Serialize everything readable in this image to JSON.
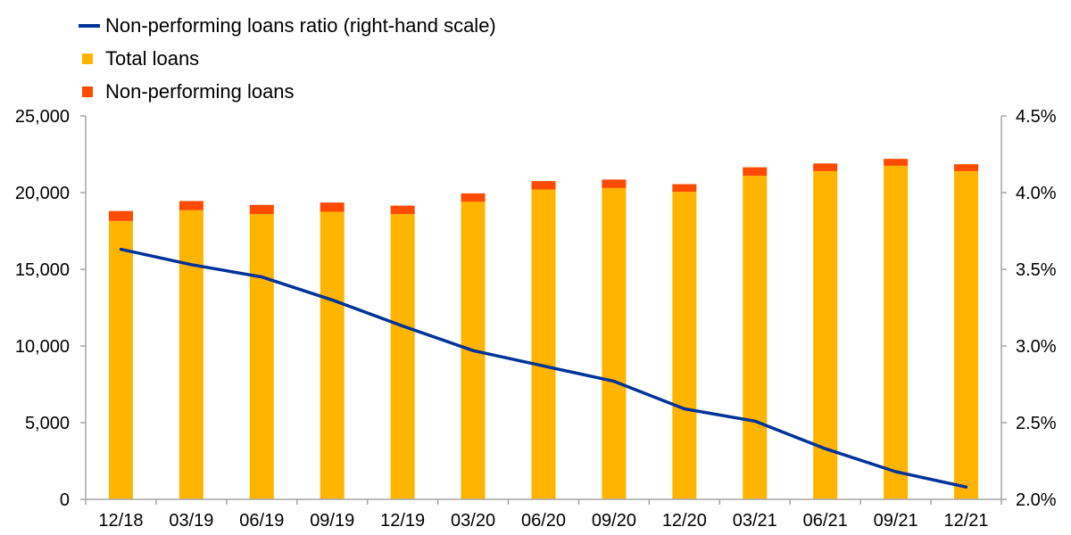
{
  "chart_data": {
    "type": "bar",
    "categories": [
      "12/18",
      "03/19",
      "06/19",
      "09/19",
      "12/19",
      "03/20",
      "06/20",
      "09/20",
      "12/20",
      "03/21",
      "06/21",
      "09/21",
      "12/21"
    ],
    "series": [
      {
        "name": "Total loans",
        "kind": "stacked-bar",
        "axis": "left",
        "color": "#FFB400",
        "values": [
          18150,
          18850,
          18600,
          18750,
          18600,
          19400,
          20200,
          20300,
          20050,
          21100,
          21400,
          21750,
          21400
        ]
      },
      {
        "name": "Non-performing loans",
        "kind": "stacked-bar",
        "axis": "left",
        "color": "#FF4B00",
        "values": [
          650,
          600,
          600,
          600,
          550,
          550,
          550,
          550,
          500,
          550,
          500,
          450,
          450
        ]
      },
      {
        "name": "Non-performing loans ratio (right-hand scale)",
        "kind": "line",
        "axis": "right",
        "color": "#003299",
        "values": [
          3.63,
          3.53,
          3.45,
          3.3,
          3.13,
          2.97,
          2.87,
          2.77,
          2.59,
          2.51,
          2.33,
          2.18,
          2.08
        ]
      }
    ],
    "legend_order": [
      "Non-performing loans ratio (right-hand scale)",
      "Total loans",
      "Non-performing loans"
    ],
    "legend_position": "top-left",
    "ylim": [
      0,
      25000
    ],
    "yticks": [
      "0",
      "5,000",
      "10,000",
      "15,000",
      "20,000",
      "25,000"
    ],
    "ylim_right": [
      2.0,
      4.5
    ],
    "yticks_right": [
      "2.0%",
      "2.5%",
      "3.0%",
      "3.5%",
      "4.0%",
      "4.5%"
    ],
    "grid": false,
    "axis_color": "#A6A6A6"
  }
}
